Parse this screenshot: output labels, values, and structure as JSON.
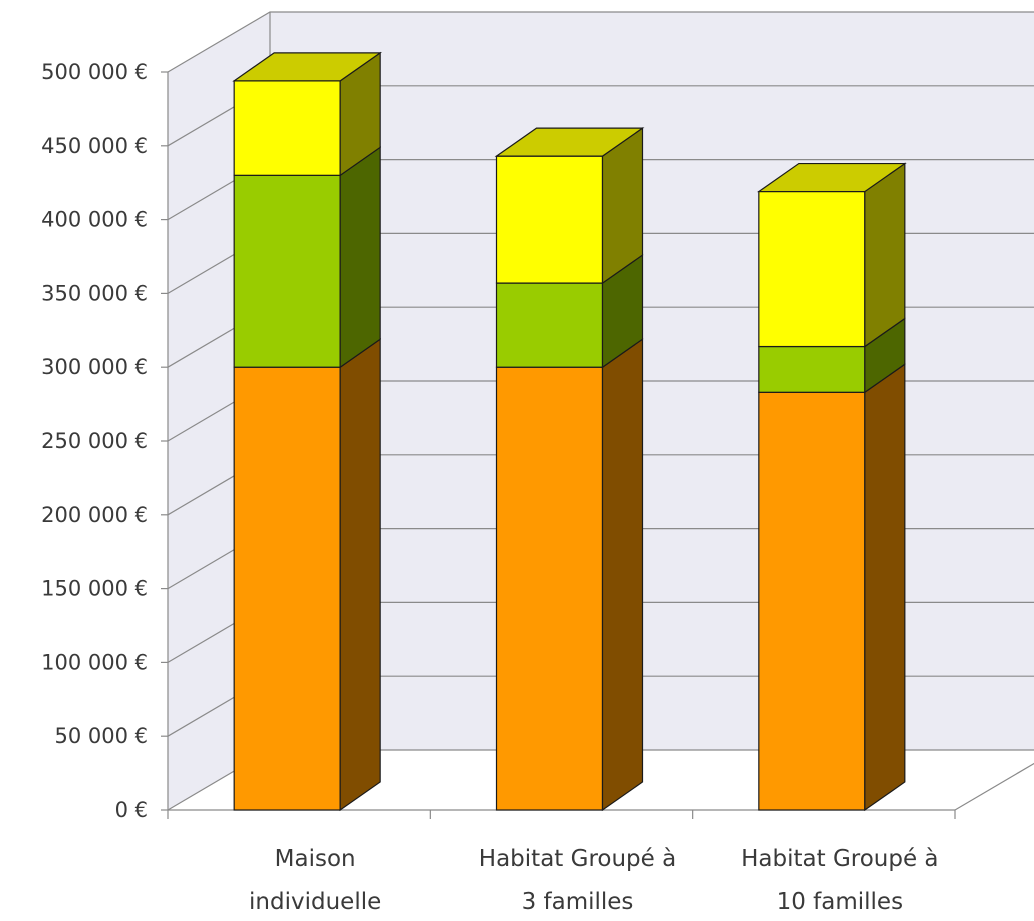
{
  "chart_data": {
    "type": "bar",
    "stacked": true,
    "three_d": true,
    "categories": [
      [
        "Maison",
        "individuelle"
      ],
      [
        "Habitat Groupé à",
        "3 familles"
      ],
      [
        "Habitat Groupé à",
        "10 familles"
      ]
    ],
    "series": [
      {
        "values": [
          300000,
          300000,
          283000
        ],
        "color": "#ff9900",
        "side_color": "#804d00",
        "top_color": "#cc7a00"
      },
      {
        "values": [
          130000,
          57000,
          31000
        ],
        "color": "#99cc00",
        "side_color": "#4d6600",
        "top_color": "#7aa300"
      },
      {
        "values": [
          64000,
          86000,
          105000
        ],
        "color": "#ffff00",
        "side_color": "#808000",
        "top_color": "#cccc00"
      }
    ],
    "ylim": [
      0,
      500000
    ],
    "y_ticks": [
      "0 €",
      "50 000 €",
      "100 000 €",
      "150 000 €",
      "200 000 €",
      "250 000 €",
      "300 000 €",
      "350 000 €",
      "400 000 €",
      "450 000 €",
      "500 000 €"
    ],
    "y_tick_values": [
      0,
      50000,
      100000,
      150000,
      200000,
      250000,
      300000,
      350000,
      400000,
      450000,
      500000
    ],
    "title": "",
    "xlabel": "",
    "ylabel": "",
    "grid": true,
    "legend": "none",
    "wall_color": "#ebebf3",
    "grid_color": "#8a8a8a"
  }
}
